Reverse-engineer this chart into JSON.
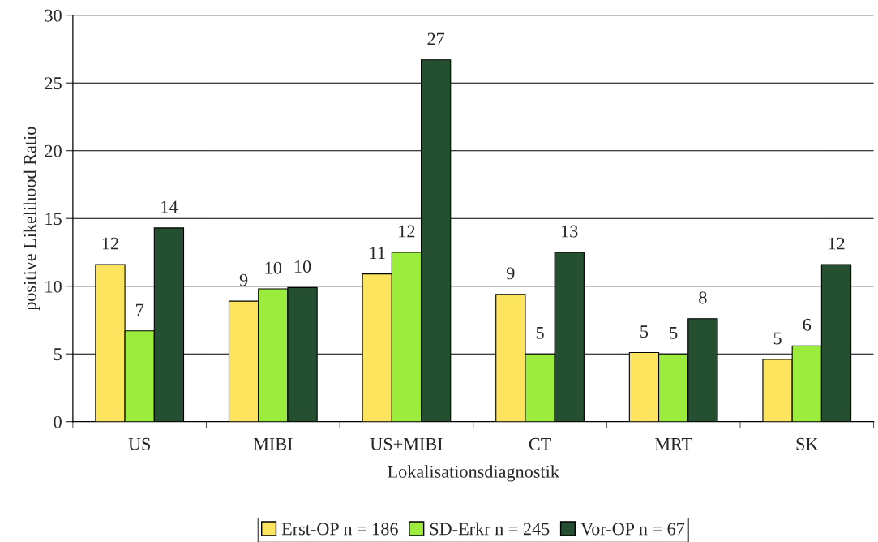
{
  "chart_data": {
    "type": "bar",
    "xlabel": "Lokalisationsdiagnostik",
    "ylabel": "positive Likelihood Ratio",
    "categories": [
      "US",
      "MIBI",
      "US+MIBI",
      "CT",
      "MRT",
      "SK"
    ],
    "series": [
      {
        "name": "Erst-OP n = 186",
        "color": "#fde45e",
        "values": [
          11.6,
          8.9,
          10.9,
          9.4,
          5.1,
          4.6
        ],
        "value_labels": [
          "12",
          "9",
          "11",
          "9",
          "5",
          "5"
        ]
      },
      {
        "name": "SD-Erkr n = 245",
        "color": "#9cec3e",
        "values": [
          6.7,
          9.8,
          12.5,
          5.0,
          5.0,
          5.6
        ],
        "value_labels": [
          "7",
          "10",
          "12",
          "5",
          "5",
          "6"
        ]
      },
      {
        "name": "Vor-OP n = 67",
        "color": "#244f31",
        "values": [
          14.3,
          9.9,
          26.7,
          12.5,
          7.6,
          11.6
        ],
        "value_labels": [
          "14",
          "10",
          "27",
          "13",
          "8",
          "12"
        ]
      }
    ],
    "ylim": [
      0,
      30
    ],
    "yticks": [
      0,
      5,
      10,
      15,
      20,
      25,
      30
    ],
    "grid": "y",
    "legend": "bottom"
  }
}
